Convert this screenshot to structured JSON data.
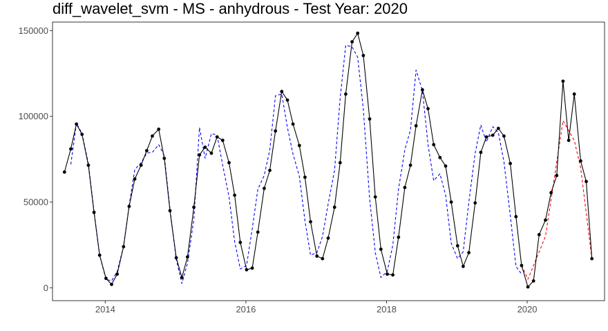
{
  "chart_data": {
    "type": "line",
    "title": "diff_wavelet_svm - MS - anhydrous - Test Year: 2020",
    "xlabel": "",
    "ylabel": "",
    "xlim": [
      2013.25,
      2021.1
    ],
    "ylim": [
      -7500,
      155000
    ],
    "x_ticks": [
      2014,
      2016,
      2018,
      2020
    ],
    "x_tick_labels": [
      "2014",
      "2016",
      "2018",
      "2020"
    ],
    "y_ticks": [
      0,
      50000,
      100000,
      150000
    ],
    "y_tick_labels": [
      "0",
      "50000",
      "100000",
      "150000"
    ],
    "grid": false,
    "legend": "none",
    "colors": {
      "actual": "#000000",
      "fitted": "#0000ff",
      "forecast": "#ff0000"
    },
    "series": [
      {
        "style": "solid-line-with-points",
        "color": "#000000",
        "x": [
          2013.42,
          2013.51,
          2013.59,
          2013.67,
          2013.76,
          2013.84,
          2013.92,
          2014.01,
          2014.09,
          2014.17,
          2014.26,
          2014.34,
          2014.42,
          2014.51,
          2014.59,
          2014.67,
          2014.76,
          2014.84,
          2014.92,
          2015.01,
          2015.09,
          2015.17,
          2015.26,
          2015.34,
          2015.42,
          2015.51,
          2015.59,
          2015.67,
          2015.76,
          2015.84,
          2015.92,
          2016.01,
          2016.09,
          2016.17,
          2016.26,
          2016.34,
          2016.42,
          2016.51,
          2016.59,
          2016.67,
          2016.76,
          2016.84,
          2016.92,
          2017.01,
          2017.09,
          2017.17,
          2017.26,
          2017.34,
          2017.42,
          2017.51,
          2017.59,
          2017.67,
          2017.76,
          2017.84,
          2017.92,
          2018.01,
          2018.09,
          2018.17,
          2018.26,
          2018.34,
          2018.42,
          2018.51,
          2018.59,
          2018.67,
          2018.76,
          2018.84,
          2018.92,
          2019.01,
          2019.09,
          2019.17,
          2019.26,
          2019.34,
          2019.42,
          2019.51,
          2019.59,
          2019.67,
          2019.76,
          2019.84,
          2019.92,
          2020.01,
          2020.09,
          2020.17,
          2020.26,
          2020.34,
          2020.42,
          2020.51,
          2020.59,
          2020.67,
          2020.76,
          2020.84,
          2020.92
        ],
        "values": [
          67500,
          81000,
          95500,
          89500,
          71500,
          44000,
          19000,
          5500,
          2000,
          8000,
          24000,
          47500,
          63500,
          71500,
          80000,
          88500,
          92500,
          75500,
          45000,
          17500,
          6000,
          18000,
          47000,
          77500,
          82000,
          78500,
          88000,
          86000,
          73000,
          54000,
          26500,
          10500,
          11500,
          32500,
          58000,
          68500,
          91500,
          114500,
          109500,
          95500,
          83000,
          64500,
          38500,
          18500,
          17000,
          29000,
          47000,
          73000,
          113000,
          143500,
          148500,
          135500,
          98500,
          53000,
          22500,
          8000,
          7500,
          29500,
          58500,
          71500,
          94500,
          115500,
          104500,
          83500,
          76000,
          71000,
          50000,
          24500,
          12500,
          20500,
          49500,
          79000,
          88000,
          89000,
          93000,
          88500,
          72500,
          41500,
          13000,
          500,
          4000,
          31000,
          39500,
          55500,
          65500,
          120500,
          86000,
          113000,
          74000,
          62000,
          17000
        ]
      },
      {
        "style": "dashed-line",
        "color": "#0000ff",
        "x": [
          2013.51,
          2013.59,
          2013.67,
          2013.76,
          2013.84,
          2013.92,
          2014.01,
          2014.09,
          2014.17,
          2014.26,
          2014.34,
          2014.42,
          2014.51,
          2014.59,
          2014.67,
          2014.76,
          2014.84,
          2014.92,
          2015.01,
          2015.09,
          2015.17,
          2015.26,
          2015.34,
          2015.42,
          2015.51,
          2015.59,
          2015.67,
          2015.76,
          2015.84,
          2015.92,
          2016.01,
          2016.09,
          2016.17,
          2016.26,
          2016.34,
          2016.42,
          2016.51,
          2016.59,
          2016.67,
          2016.76,
          2016.84,
          2016.92,
          2017.01,
          2017.09,
          2017.17,
          2017.26,
          2017.34,
          2017.42,
          2017.51,
          2017.59,
          2017.67,
          2017.76,
          2017.84,
          2017.92,
          2018.01,
          2018.09,
          2018.17,
          2018.26,
          2018.34,
          2018.42,
          2018.51,
          2018.59,
          2018.67,
          2018.76,
          2018.84,
          2018.92,
          2019.01,
          2019.09,
          2019.17,
          2019.26,
          2019.34,
          2019.42,
          2019.51,
          2019.59,
          2019.67,
          2019.76,
          2019.84,
          2019.92
        ],
        "values": [
          72000,
          96000,
          90000,
          72500,
          44500,
          19000,
          5000,
          4000,
          9500,
          24000,
          48000,
          69000,
          73000,
          78500,
          79000,
          83500,
          77000,
          46000,
          16500,
          2500,
          14500,
          40000,
          93500,
          75500,
          90000,
          89000,
          71500,
          53000,
          27000,
          11000,
          13000,
          34500,
          57500,
          65500,
          80500,
          112000,
          113000,
          93500,
          78000,
          65000,
          39000,
          19000,
          20500,
          30000,
          49000,
          68500,
          110500,
          141500,
          140500,
          134500,
          104000,
          52000,
          20500,
          6000,
          9500,
          25000,
          57500,
          80500,
          92000,
          127000,
          115000,
          83500,
          62500,
          66500,
          54000,
          26000,
          17000,
          21000,
          50000,
          78500,
          95000,
          85000,
          94000,
          90500,
          73500,
          42000,
          12500,
          8000
        ]
      },
      {
        "style": "dashed-line",
        "color": "#ff0000",
        "x": [
          2019.92,
          2020.01,
          2020.26,
          2020.51,
          2020.67,
          2020.76,
          2020.92
        ],
        "values": [
          13000,
          5000,
          30000,
          97500,
          86000,
          70000,
          17000
        ]
      }
    ]
  }
}
